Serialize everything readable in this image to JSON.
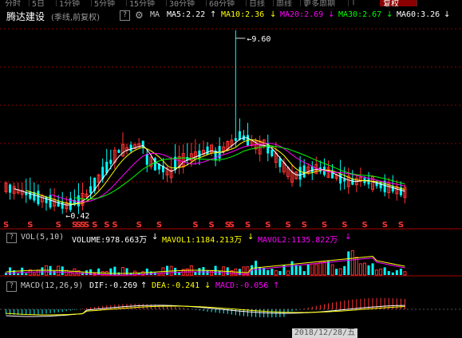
{
  "tabs": [
    "分时",
    "5日",
    "1分钟",
    "5分钟",
    "15分钟",
    "30分钟",
    "60分钟",
    "日线",
    "周线",
    "更多周期",
    "|",
    "复权"
  ],
  "stock": {
    "name": "腾达建设",
    "mode": "(季线,前复权)",
    "q_label": "?",
    "ma_label": "MA"
  },
  "ma": [
    {
      "label": "MA5:2.22",
      "arrow": "↑",
      "color": "#ffffff"
    },
    {
      "label": "MA10:2.36",
      "arrow": "↓",
      "color": "#ffff00"
    },
    {
      "label": "MA20:2.69",
      "arrow": "↓",
      "color": "#ff00ff"
    },
    {
      "label": "MA30:2.67",
      "arrow": "↓",
      "color": "#00ff00"
    },
    {
      "label": "MA60:3.26",
      "arrow": "↓",
      "color": "#ffffff"
    }
  ],
  "annotations": {
    "high": "9.60",
    "low": "0.42"
  },
  "vol": {
    "q_label": "?",
    "title": "VOL(5,10)",
    "volume": "VOLUME:978.663万",
    "volume_arrow": "↓",
    "mavol1": "MAVOL1:1184.213万",
    "mavol1_arrow": "↓",
    "mavol2": "MAVOL2:1135.822万",
    "mavol2_arrow": "↓"
  },
  "macd": {
    "q_label": "?",
    "title": "MACD(12,26,9)",
    "dif": "DIF:-0.269",
    "dif_arrow": "↑",
    "dea": "DEA:-0.241",
    "dea_arrow": "↓",
    "macd": "MACD:-0.056",
    "macd_arrow": "↑"
  },
  "cursor_date": "2018/12/28/五",
  "s_mark": "S",
  "colors": {
    "up": "#ff3232",
    "down": "#00ffff",
    "bg": "#000000",
    "grid": "#8b0000"
  }
}
